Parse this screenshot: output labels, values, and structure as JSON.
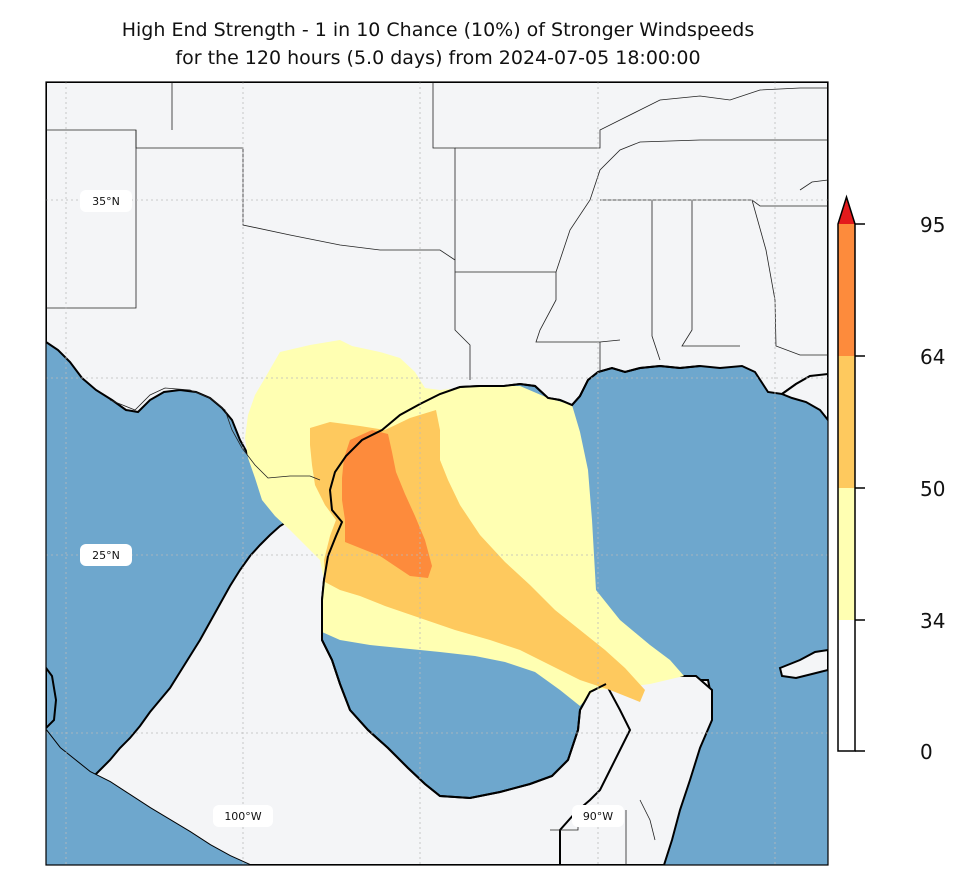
{
  "title": {
    "line1": "High End Strength - 1 in 10 Chance (10%) of Stronger Windspeeds",
    "line2": "for the 120 hours (5.0 days) from 2024-07-05 18:00:00"
  },
  "map": {
    "graticule": {
      "lat_labels": [
        "35°N",
        "25°N"
      ],
      "lon_labels": [
        "100°W",
        "90°W"
      ]
    },
    "colors": {
      "land": "#f4f5f7",
      "water": "#6ea7cd",
      "band_34_50": "#ffffb2",
      "band_50_64": "#fec95e",
      "band_64_95": "#fd8b3c",
      "band_over_95": "#e31a1c"
    }
  },
  "colorbar": {
    "ticks": [
      "0",
      "34",
      "50",
      "64",
      "95"
    ],
    "extend": "max"
  }
}
